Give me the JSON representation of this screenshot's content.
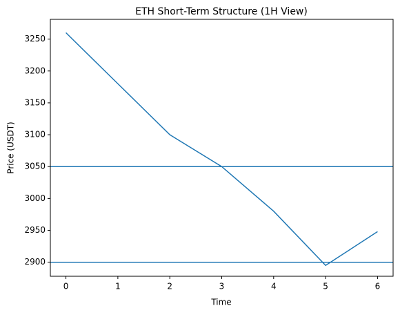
{
  "chart_data": {
    "type": "line",
    "title": "ETH Short-Term Structure (1H View)",
    "x_label": "Time",
    "y_label": "Price (USDT)",
    "x": [
      0,
      1,
      2,
      3,
      4,
      5,
      6
    ],
    "series": [
      {
        "color": "#1f77b4",
        "values": [
          3260,
          3180,
          3100,
          3050,
          2980,
          2895,
          2948
        ]
      }
    ],
    "hlines": [
      {
        "value": 3050,
        "color": "#1f77b4"
      },
      {
        "value": 2900,
        "color": "#1f77b4"
      }
    ],
    "xlim": [
      -0.3,
      6.3
    ],
    "xticks": [
      0,
      1,
      2,
      3,
      4,
      5,
      6
    ],
    "ylim": [
      2878,
      3281
    ],
    "yticks": [
      2900,
      2950,
      3000,
      3050,
      3100,
      3150,
      3200,
      3250
    ],
    "grid": false
  }
}
